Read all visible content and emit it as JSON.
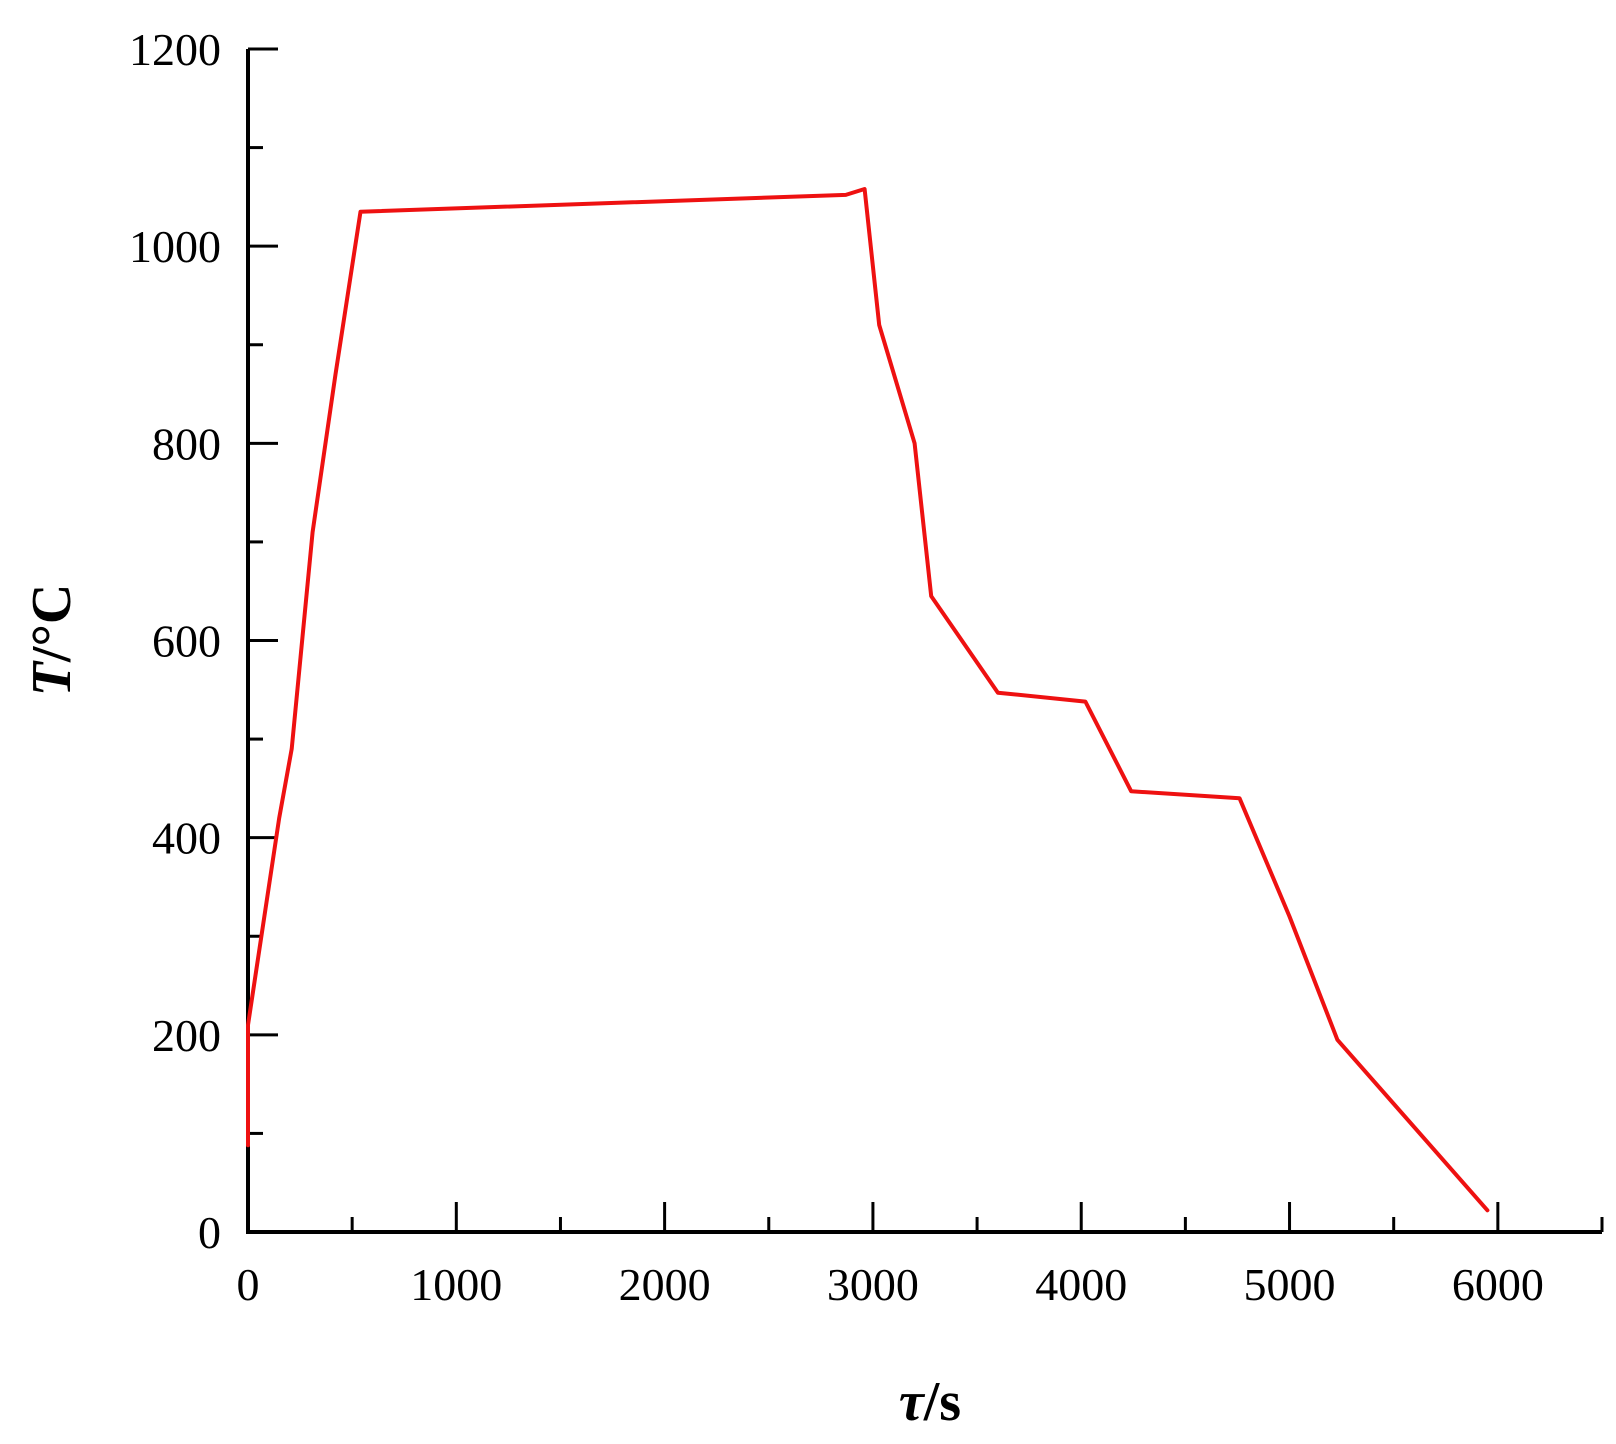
{
  "chart_data": {
    "type": "line",
    "title": "",
    "xlabel_symbol": "τ",
    "xlabel_unit": "/s",
    "ylabel_symbol": "T",
    "ylabel_unit": "/°C",
    "xlim": [
      0,
      6500
    ],
    "ylim": [
      0,
      1200
    ],
    "x_ticks": [
      0,
      1000,
      2000,
      3000,
      4000,
      5000,
      6000
    ],
    "x_minor_ticks": [
      500,
      1500,
      2500,
      3500,
      4500,
      5500,
      6500
    ],
    "y_ticks": [
      0,
      200,
      400,
      600,
      800,
      1000,
      1200
    ],
    "y_minor_ticks": [
      100,
      300,
      500,
      700,
      900,
      1100
    ],
    "grid": false,
    "legend": "none",
    "line_color": "#ee1111",
    "series": [
      {
        "x": [
          0,
          0,
          150,
          210,
          310,
          420,
          540,
          2870,
          2960,
          3030,
          3200,
          3280,
          3600,
          4020,
          4240,
          4760,
          5000,
          5230,
          5950
        ],
        "y": [
          88,
          210,
          420,
          490,
          710,
          870,
          1035,
          1052,
          1058,
          920,
          800,
          645,
          547,
          538,
          447,
          440,
          320,
          195,
          22
        ]
      }
    ]
  }
}
